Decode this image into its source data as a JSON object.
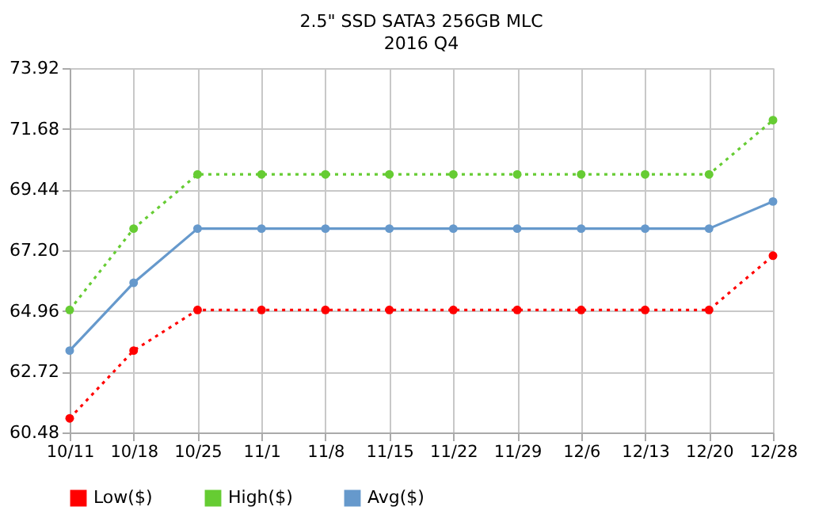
{
  "chart_data": {
    "type": "line",
    "title": "2.5\" SSD SATA3 256GB MLC",
    "subtitle": "2016 Q4",
    "categories": [
      "10/11",
      "10/18",
      "10/25",
      "11/1",
      "11/8",
      "11/15",
      "11/22",
      "11/29",
      "12/6",
      "12/13",
      "12/20",
      "12/28"
    ],
    "series": [
      {
        "name": "Low($)",
        "color": "#ff0000",
        "line_style": "dotted",
        "values": [
          61.0,
          63.5,
          65.0,
          65.0,
          65.0,
          65.0,
          65.0,
          65.0,
          65.0,
          65.0,
          65.0,
          67.0
        ]
      },
      {
        "name": "High($)",
        "color": "#66cc33",
        "line_style": "dotted",
        "values": [
          65.0,
          68.0,
          70.0,
          70.0,
          70.0,
          70.0,
          70.0,
          70.0,
          70.0,
          70.0,
          70.0,
          72.0
        ]
      },
      {
        "name": "Avg($)",
        "color": "#6699cc",
        "line_style": "solid",
        "values": [
          63.5,
          66.0,
          68.0,
          68.0,
          68.0,
          68.0,
          68.0,
          68.0,
          68.0,
          68.0,
          68.0,
          69.0
        ]
      }
    ],
    "ylim": [
      60.48,
      73.92
    ],
    "yticks": [
      {
        "value": 60.48,
        "label": "60.48"
      },
      {
        "value": 62.72,
        "label": "62.72"
      },
      {
        "value": 64.96,
        "label": "64.96"
      },
      {
        "value": 67.2,
        "label": "67.20"
      },
      {
        "value": 69.44,
        "label": "69.44"
      },
      {
        "value": 71.68,
        "label": "71.68"
      },
      {
        "value": 73.92,
        "label": "73.92"
      }
    ],
    "grid": true,
    "legend": "bottom",
    "marker": "circle"
  }
}
